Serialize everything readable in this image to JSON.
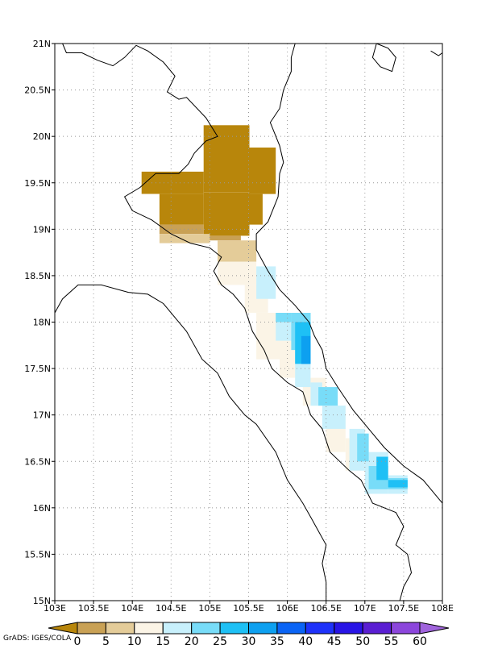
{
  "map": {
    "lon_range": [
      103,
      108
    ],
    "lat_range": [
      15,
      21
    ],
    "x_ticks": [
      {
        "v": 103,
        "label": "103E"
      },
      {
        "v": 103.5,
        "label": "103.5E"
      },
      {
        "v": 104,
        "label": "104E"
      },
      {
        "v": 104.5,
        "label": "104.5E"
      },
      {
        "v": 105,
        "label": "105E"
      },
      {
        "v": 105.5,
        "label": "105.5E"
      },
      {
        "v": 106,
        "label": "106E"
      },
      {
        "v": 106.5,
        "label": "106.5E"
      },
      {
        "v": 107,
        "label": "107E"
      },
      {
        "v": 107.5,
        "label": "107.5E"
      },
      {
        "v": 108,
        "label": "108E"
      }
    ],
    "y_ticks": [
      {
        "v": 15,
        "label": "15N"
      },
      {
        "v": 15.5,
        "label": "15.5N"
      },
      {
        "v": 16,
        "label": "16N"
      },
      {
        "v": 16.5,
        "label": "16.5N"
      },
      {
        "v": 17,
        "label": "17N"
      },
      {
        "v": 17.5,
        "label": "17.5N"
      },
      {
        "v": 18,
        "label": "18N"
      },
      {
        "v": 18.5,
        "label": "18.5N"
      },
      {
        "v": 19,
        "label": "19N"
      },
      {
        "v": 19.5,
        "label": "19.5N"
      },
      {
        "v": 20,
        "label": "20N"
      },
      {
        "v": 20.5,
        "label": "20.5N"
      },
      {
        "v": 21,
        "label": "21N"
      }
    ],
    "grid": true,
    "credit": "GrADS: IGES/COLA"
  },
  "colorbar": {
    "labels": [
      "0",
      "5",
      "10",
      "15",
      "20",
      "25",
      "30",
      "35",
      "40",
      "45",
      "50",
      "55",
      "60"
    ],
    "colors": [
      "#b8860b",
      "#c9a155",
      "#e4cc99",
      "#fbf4e6",
      "#c8f0fc",
      "#78dcf8",
      "#1ec0f5",
      "#0da0f0",
      "#0a64f5",
      "#1e32fa",
      "#2814e6",
      "#5a1ed2",
      "#8c46dc",
      "#a064dc"
    ]
  },
  "field": [
    {
      "lon0": 104.92,
      "lon1": 105.51,
      "lat0": 19.4,
      "lat1": 20.12,
      "c": "#b8860b"
    },
    {
      "lon0": 105.51,
      "lon1": 105.85,
      "lat0": 19.38,
      "lat1": 19.88,
      "c": "#b8860b"
    },
    {
      "lon0": 104.12,
      "lon1": 104.92,
      "lat0": 19.38,
      "lat1": 19.62,
      "c": "#b8860b"
    },
    {
      "lon0": 104.35,
      "lon1": 104.92,
      "lat0": 19.05,
      "lat1": 19.38,
      "c": "#b8860b"
    },
    {
      "lon0": 104.92,
      "lon1": 105.51,
      "lat0": 18.93,
      "lat1": 19.4,
      "c": "#b8860b"
    },
    {
      "lon0": 105.51,
      "lon1": 105.68,
      "lat0": 19.05,
      "lat1": 19.38,
      "c": "#b8860b"
    },
    {
      "lon0": 104.35,
      "lon1": 104.92,
      "lat0": 18.95,
      "lat1": 19.05,
      "c": "#c9a155"
    },
    {
      "lon0": 104.92,
      "lon1": 105.4,
      "lat0": 18.88,
      "lat1": 18.93,
      "c": "#c9a155"
    },
    {
      "lon0": 104.35,
      "lon1": 105.0,
      "lat0": 18.85,
      "lat1": 18.95,
      "c": "#e4cc99"
    },
    {
      "lon0": 105.1,
      "lon1": 105.6,
      "lat0": 18.65,
      "lat1": 18.88,
      "c": "#e4cc99"
    },
    {
      "lon0": 105.1,
      "lon1": 105.6,
      "lat0": 18.4,
      "lat1": 18.65,
      "c": "#fbf4e6"
    },
    {
      "lon0": 105.45,
      "lon1": 105.75,
      "lat0": 18.1,
      "lat1": 18.4,
      "c": "#fbf4e6"
    },
    {
      "lon0": 105.6,
      "lon1": 105.9,
      "lat0": 17.6,
      "lat1": 18.1,
      "c": "#fbf4e6"
    },
    {
      "lon0": 105.9,
      "lon1": 106.2,
      "lat0": 17.4,
      "lat1": 17.8,
      "c": "#fbf4e6"
    },
    {
      "lon0": 106.2,
      "lon1": 106.5,
      "lat0": 17.1,
      "lat1": 17.4,
      "c": "#fbf4e6"
    },
    {
      "lon0": 106.5,
      "lon1": 106.75,
      "lat0": 16.6,
      "lat1": 17.1,
      "c": "#fbf4e6"
    },
    {
      "lon0": 106.75,
      "lon1": 106.95,
      "lat0": 16.4,
      "lat1": 16.75,
      "c": "#fbf4e6"
    },
    {
      "lon0": 105.6,
      "lon1": 105.85,
      "lat0": 18.25,
      "lat1": 18.6,
      "c": "#c8f0fc"
    },
    {
      "lon0": 105.85,
      "lon1": 106.1,
      "lat0": 17.8,
      "lat1": 18.1,
      "c": "#c8f0fc"
    },
    {
      "lon0": 106.1,
      "lon1": 106.3,
      "lat0": 17.5,
      "lat1": 18.1,
      "c": "#c8f0fc"
    },
    {
      "lon0": 106.1,
      "lon1": 106.3,
      "lat0": 17.3,
      "lat1": 17.5,
      "c": "#c8f0fc"
    },
    {
      "lon0": 106.3,
      "lon1": 106.45,
      "lat0": 17.1,
      "lat1": 17.35,
      "c": "#c8f0fc"
    },
    {
      "lon0": 106.45,
      "lon1": 106.75,
      "lat0": 16.85,
      "lat1": 17.1,
      "c": "#c8f0fc"
    },
    {
      "lon0": 106.8,
      "lon1": 107.0,
      "lat0": 16.4,
      "lat1": 16.85,
      "c": "#c8f0fc"
    },
    {
      "lon0": 107.0,
      "lon1": 107.3,
      "lat0": 16.15,
      "lat1": 16.6,
      "c": "#c8f0fc"
    },
    {
      "lon0": 107.3,
      "lon1": 107.55,
      "lat0": 16.15,
      "lat1": 16.35,
      "c": "#c8f0fc"
    },
    {
      "lon0": 105.85,
      "lon1": 106.05,
      "lat0": 18.0,
      "lat1": 18.1,
      "c": "#78dcf8"
    },
    {
      "lon0": 106.05,
      "lon1": 106.3,
      "lat0": 17.7,
      "lat1": 18.1,
      "c": "#78dcf8"
    },
    {
      "lon0": 106.4,
      "lon1": 106.65,
      "lat0": 17.1,
      "lat1": 17.3,
      "c": "#78dcf8"
    },
    {
      "lon0": 106.9,
      "lon1": 107.05,
      "lat0": 16.5,
      "lat1": 16.8,
      "c": "#78dcf8"
    },
    {
      "lon0": 107.05,
      "lon1": 107.3,
      "lat0": 16.2,
      "lat1": 16.45,
      "c": "#78dcf8"
    },
    {
      "lon0": 107.3,
      "lon1": 107.55,
      "lat0": 16.2,
      "lat1": 16.32,
      "c": "#78dcf8"
    },
    {
      "lon0": 106.1,
      "lon1": 106.3,
      "lat0": 17.55,
      "lat1": 18.0,
      "c": "#1ec0f5"
    },
    {
      "lon0": 107.15,
      "lon1": 107.3,
      "lat0": 16.3,
      "lat1": 16.55,
      "c": "#1ec0f5"
    },
    {
      "lon0": 107.3,
      "lon1": 107.55,
      "lat0": 16.22,
      "lat1": 16.3,
      "c": "#1ec0f5"
    },
    {
      "lon0": 106.18,
      "lon1": 106.3,
      "lat0": 17.55,
      "lat1": 17.85,
      "c": "#0da0f0"
    }
  ],
  "coast": [
    [
      [
        103.1,
        21.0
      ],
      [
        103.15,
        20.9
      ],
      [
        103.35,
        20.9
      ],
      [
        103.55,
        20.82
      ],
      [
        103.75,
        20.76
      ],
      [
        103.9,
        20.85
      ],
      [
        104.05,
        20.98
      ],
      [
        104.2,
        20.92
      ],
      [
        104.4,
        20.8
      ],
      [
        104.55,
        20.65
      ],
      [
        104.45,
        20.48
      ],
      [
        104.6,
        20.4
      ],
      [
        104.7,
        20.42
      ],
      [
        104.95,
        20.2
      ],
      [
        105.1,
        20.0
      ],
      [
        104.95,
        19.95
      ],
      [
        104.8,
        19.82
      ],
      [
        104.72,
        19.7
      ],
      [
        104.6,
        19.6
      ],
      [
        104.3,
        19.6
      ],
      [
        104.1,
        19.45
      ],
      [
        103.9,
        19.35
      ],
      [
        104.0,
        19.2
      ],
      [
        104.25,
        19.1
      ],
      [
        104.5,
        18.95
      ],
      [
        104.75,
        18.85
      ],
      [
        105.0,
        18.8
      ],
      [
        105.15,
        18.7
      ],
      [
        105.05,
        18.55
      ],
      [
        105.15,
        18.4
      ],
      [
        105.3,
        18.3
      ],
      [
        105.45,
        18.15
      ],
      [
        105.55,
        17.9
      ],
      [
        105.7,
        17.7
      ],
      [
        105.8,
        17.5
      ],
      [
        106.0,
        17.35
      ],
      [
        106.2,
        17.25
      ],
      [
        106.3,
        17.0
      ],
      [
        106.45,
        16.85
      ],
      [
        106.55,
        16.6
      ],
      [
        106.8,
        16.4
      ],
      [
        106.95,
        16.3
      ],
      [
        107.1,
        16.05
      ],
      [
        107.4,
        15.95
      ],
      [
        107.5,
        15.8
      ],
      [
        107.4,
        15.6
      ],
      [
        107.55,
        15.5
      ],
      [
        107.6,
        15.3
      ],
      [
        107.5,
        15.15
      ],
      [
        107.45,
        15.0
      ]
    ],
    [
      [
        106.5,
        15.0
      ],
      [
        106.5,
        15.2
      ],
      [
        106.45,
        15.4
      ],
      [
        106.5,
        15.6
      ],
      [
        106.4,
        15.75
      ],
      [
        106.3,
        15.9
      ],
      [
        106.2,
        16.05
      ],
      [
        106.0,
        16.3
      ],
      [
        105.85,
        16.6
      ],
      [
        105.6,
        16.9
      ],
      [
        105.45,
        17.0
      ],
      [
        105.25,
        17.2
      ],
      [
        105.1,
        17.45
      ],
      [
        104.9,
        17.6
      ],
      [
        104.7,
        17.9
      ],
      [
        104.4,
        18.2
      ],
      [
        104.2,
        18.3
      ],
      [
        103.95,
        18.32
      ],
      [
        103.6,
        18.4
      ],
      [
        103.3,
        18.4
      ],
      [
        103.1,
        18.25
      ],
      [
        103.0,
        18.1
      ]
    ],
    [
      [
        106.1,
        21.0
      ],
      [
        106.05,
        20.85
      ],
      [
        106.05,
        20.7
      ],
      [
        105.95,
        20.5
      ],
      [
        105.9,
        20.3
      ],
      [
        105.78,
        20.15
      ],
      [
        105.9,
        19.9
      ],
      [
        105.95,
        19.72
      ],
      [
        105.9,
        19.6
      ],
      [
        105.88,
        19.35
      ],
      [
        105.75,
        19.08
      ],
      [
        105.6,
        18.95
      ],
      [
        105.6,
        18.78
      ],
      [
        105.75,
        18.55
      ],
      [
        105.9,
        18.35
      ],
      [
        106.1,
        18.18
      ],
      [
        106.28,
        18.0
      ],
      [
        106.35,
        17.85
      ],
      [
        106.45,
        17.7
      ],
      [
        106.5,
        17.5
      ],
      [
        106.65,
        17.3
      ],
      [
        106.85,
        17.05
      ],
      [
        107.05,
        16.85
      ],
      [
        107.25,
        16.65
      ],
      [
        107.5,
        16.45
      ],
      [
        107.75,
        16.3
      ],
      [
        107.9,
        16.15
      ],
      [
        108.0,
        16.05
      ]
    ],
    [
      [
        107.15,
        21.0
      ],
      [
        107.1,
        20.85
      ],
      [
        107.2,
        20.75
      ],
      [
        107.35,
        20.7
      ],
      [
        107.4,
        20.85
      ],
      [
        107.3,
        20.95
      ],
      [
        107.15,
        21.0
      ]
    ],
    [
      [
        107.85,
        20.92
      ],
      [
        107.95,
        20.87
      ],
      [
        108.0,
        20.9
      ]
    ]
  ]
}
